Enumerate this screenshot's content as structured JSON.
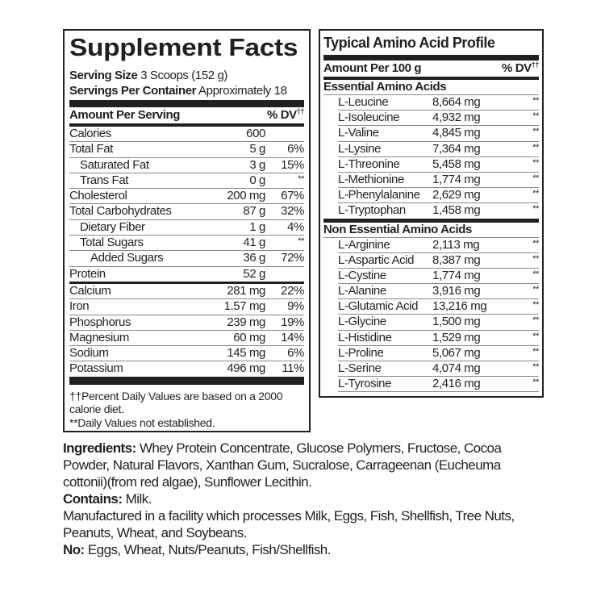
{
  "facts": {
    "title": "Supplement Facts",
    "serving_size_label": "Serving Size",
    "serving_size": "3 Scoops (152 g)",
    "servings_label": "Servings Per Container",
    "servings": "Approximately 18",
    "amount_header": "Amount Per Serving",
    "dv_header": "% DV",
    "dv_mark": "††",
    "group1": [
      {
        "name": "Calories",
        "amount": "600",
        "dv": "",
        "indent": 0
      },
      {
        "name": "Total Fat",
        "amount": "5 g",
        "dv": "6%",
        "indent": 0
      },
      {
        "name": "Saturated Fat",
        "amount": "3 g",
        "dv": "15%",
        "indent": 1
      },
      {
        "name": "Trans Fat",
        "amount": "0 g",
        "dv": "**",
        "indent": 1
      },
      {
        "name": "Cholesterol",
        "amount": "200 mg",
        "dv": "67%",
        "indent": 0
      },
      {
        "name": "Total Carbohydrates",
        "amount": "87 g",
        "dv": "32%",
        "indent": 0
      },
      {
        "name": "Dietary Fiber",
        "amount": "1 g",
        "dv": "4%",
        "indent": 1
      },
      {
        "name": "Total Sugars",
        "amount": "41 g",
        "dv": "**",
        "indent": 1
      },
      {
        "name": "Added Sugars",
        "amount": "36 g",
        "dv": "72%",
        "indent": 2
      },
      {
        "name": "Protein",
        "amount": "52 g",
        "dv": "",
        "indent": 0
      }
    ],
    "group2": [
      {
        "name": "Calcium",
        "amount": "281 mg",
        "dv": "22%",
        "indent": 0
      },
      {
        "name": "Iron",
        "amount": "1.57 mg",
        "dv": "9%",
        "indent": 0
      },
      {
        "name": "Phosphorus",
        "amount": "239 mg",
        "dv": "19%",
        "indent": 0
      },
      {
        "name": "Magnesium",
        "amount": "60 mg",
        "dv": "14%",
        "indent": 0
      },
      {
        "name": "Sodium",
        "amount": "145 mg",
        "dv": "6%",
        "indent": 0
      },
      {
        "name": "Potassium",
        "amount": "496 mg",
        "dv": "11%",
        "indent": 0
      }
    ],
    "footnote1": "††Percent Daily Values are based on a 2000 calorie diet.",
    "footnote2": "**Daily Values not established."
  },
  "amino": {
    "title": "Typical Amino Acid Profile",
    "amount_header": "Amount Per 100 g",
    "dv_header": "% DV",
    "dv_mark": "††",
    "essential_label": "Essential Amino Acids",
    "essential": [
      {
        "name": "L-Leucine",
        "amount": "8,664 mg",
        "dv": "**"
      },
      {
        "name": "L-Isoleucine",
        "amount": "4,932 mg",
        "dv": "**"
      },
      {
        "name": "L-Valine",
        "amount": "4,845 mg",
        "dv": "**"
      },
      {
        "name": "L-Lysine",
        "amount": "7,364 mg",
        "dv": "**"
      },
      {
        "name": "L-Threonine",
        "amount": "5,458 mg",
        "dv": "**"
      },
      {
        "name": "L-Methionine",
        "amount": "1,774 mg",
        "dv": "**"
      },
      {
        "name": "L-Phenylalanine",
        "amount": "2,629 mg",
        "dv": "**"
      },
      {
        "name": "L-Tryptophan",
        "amount": "1,458 mg",
        "dv": "**"
      }
    ],
    "nonessential_label": "Non Essential Amino Acids",
    "nonessential": [
      {
        "name": "L-Arginine",
        "amount": "2,113 mg",
        "dv": "**"
      },
      {
        "name": "L-Aspartic Acid",
        "amount": "8,387 mg",
        "dv": "**"
      },
      {
        "name": "L-Cystine",
        "amount": "1,774 mg",
        "dv": "**"
      },
      {
        "name": "L-Alanine",
        "amount": "3,916 mg",
        "dv": "**"
      },
      {
        "name": "L-Glutamic Acid",
        "amount": "13,216 mg",
        "dv": "**"
      },
      {
        "name": "L-Glycine",
        "amount": "1,500 mg",
        "dv": "**"
      },
      {
        "name": "L-Histidine",
        "amount": "1,529 mg",
        "dv": "**"
      },
      {
        "name": "L-Proline",
        "amount": "5,067 mg",
        "dv": "**"
      },
      {
        "name": "L-Serine",
        "amount": "4,074 mg",
        "dv": "**"
      },
      {
        "name": "L-Tyrosine",
        "amount": "2,416 mg",
        "dv": "**"
      }
    ]
  },
  "bottom": {
    "ingredients_label": "Ingredients:",
    "ingredients": "Whey Protein Concentrate, Glucose Polymers, Fructose, Cocoa Powder, Natural Flavors, Xanthan Gum, Sucralose, Carrageenan (Eucheuma cottonii)(from red algae), Sunflower Lecithin.",
    "contains_label": "Contains:",
    "contains": "Milk.",
    "facility": "Manufactured in a facility which processes Milk, Eggs, Fish, Shellfish, Tree Nuts, Peanuts, Wheat, and Soybeans.",
    "no_label": "No:",
    "no": "Eggs, Wheat, Nuts/Peanuts, Fish/Shellfish."
  }
}
